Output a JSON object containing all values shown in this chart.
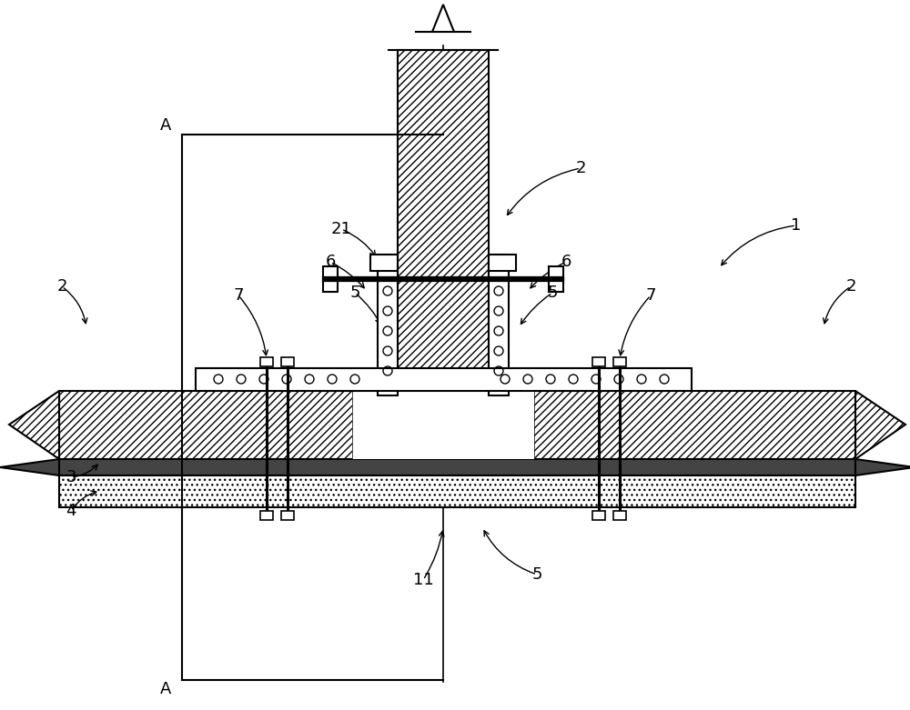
{
  "figsize": [
    10.0,
    7.81
  ],
  "dpi": 100,
  "bg_color": "#ffffff",
  "line_color": "#000000"
}
